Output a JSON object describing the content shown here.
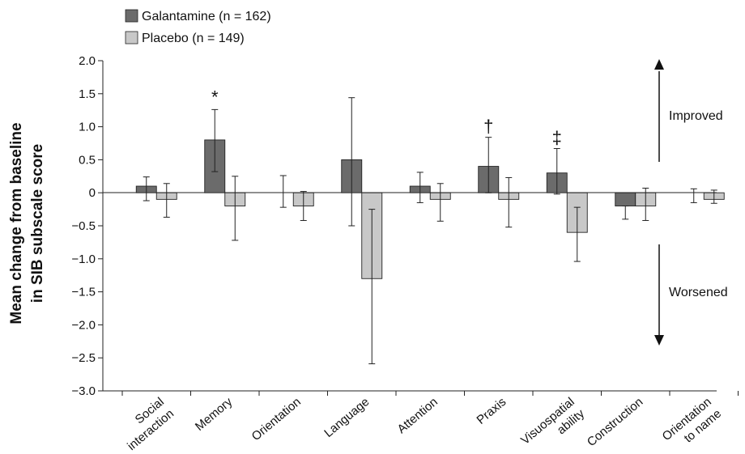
{
  "chart_data": {
    "type": "bar",
    "ylabel": [
      "Mean change from baseline",
      "in SIB subscale score"
    ],
    "xlabel": "",
    "ylim": [
      -3.0,
      2.0
    ],
    "yticks": [
      "−3.0",
      "−2.5",
      "−2.0",
      "−1.5",
      "−1.0",
      "−0.5",
      "0",
      "0.5",
      "1.0",
      "1.5",
      "2.0"
    ],
    "ytick_values": [
      -3.0,
      -2.5,
      -2.0,
      -1.5,
      -1.0,
      -0.5,
      0,
      0.5,
      1.0,
      1.5,
      2.0
    ],
    "categories": [
      [
        "Social",
        "interaction"
      ],
      [
        "Memory"
      ],
      [
        "Orientation"
      ],
      [
        "Language"
      ],
      [
        "Attention"
      ],
      [
        "Praxis"
      ],
      [
        "Visuospatial",
        "ability"
      ],
      [
        "Construction"
      ],
      [
        "Orientation",
        "to name"
      ]
    ],
    "series": [
      {
        "name": "Galantamine (n = 162)",
        "color": "#6b6b6b",
        "values": [
          0.1,
          0.8,
          0.0,
          0.5,
          0.1,
          0.4,
          0.3,
          -0.2,
          0.0
        ],
        "err_low": [
          -0.12,
          0.32,
          -0.22,
          -0.5,
          -0.15,
          0.0,
          -0.02,
          -0.4,
          -0.15
        ],
        "err_high": [
          0.24,
          1.26,
          0.26,
          1.44,
          0.31,
          0.84,
          0.67,
          -0.2,
          0.06
        ]
      },
      {
        "name": "Placebo (n = 149)",
        "color": "#c8c8c8",
        "values": [
          -0.1,
          -0.2,
          -0.2,
          -1.3,
          -0.1,
          -0.1,
          -0.6,
          -0.2,
          -0.1
        ],
        "err_low": [
          -0.37,
          -0.72,
          -0.42,
          -2.59,
          -0.43,
          -0.52,
          -1.04,
          -0.42,
          -0.16
        ],
        "err_high": [
          0.14,
          0.25,
          0.02,
          -0.25,
          0.14,
          0.23,
          -0.22,
          0.07,
          0.04
        ]
      }
    ],
    "significance_markers": [
      {
        "category_index": 1,
        "symbol": "*"
      },
      {
        "category_index": 5,
        "symbol": "†"
      },
      {
        "category_index": 6,
        "symbol": "‡"
      }
    ],
    "annotations": {
      "improved": "Improved",
      "worsened": "Worsened"
    },
    "legend_position": "top-left",
    "grid": false
  }
}
